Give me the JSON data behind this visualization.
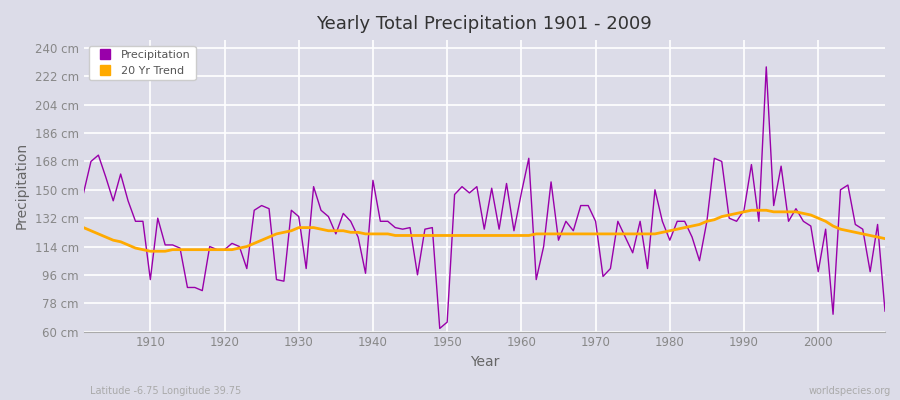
{
  "title": "Yearly Total Precipitation 1901 - 2009",
  "xlabel": "Year",
  "ylabel": "Precipitation",
  "subtitle": "Latitude -6.75 Longitude 39.75",
  "watermark": "worldspecies.org",
  "bg_color": "#dcdce8",
  "plot_bg_color": "#dcdce8",
  "grid_color": "#ffffff",
  "precip_color": "#9900aa",
  "trend_color": "#ffaa00",
  "ylim": [
    60,
    245
  ],
  "yticks": [
    60,
    78,
    96,
    114,
    132,
    150,
    168,
    186,
    204,
    222,
    240
  ],
  "xlim": [
    1901,
    2009
  ],
  "xticks": [
    1910,
    1920,
    1930,
    1940,
    1950,
    1960,
    1970,
    1980,
    1990,
    2000
  ],
  "years": [
    1901,
    1902,
    1903,
    1904,
    1905,
    1906,
    1907,
    1908,
    1909,
    1910,
    1911,
    1912,
    1913,
    1914,
    1915,
    1916,
    1917,
    1918,
    1919,
    1920,
    1921,
    1922,
    1923,
    1924,
    1925,
    1926,
    1927,
    1928,
    1929,
    1930,
    1931,
    1932,
    1933,
    1934,
    1935,
    1936,
    1937,
    1938,
    1939,
    1940,
    1941,
    1942,
    1943,
    1944,
    1945,
    1946,
    1947,
    1948,
    1949,
    1950,
    1951,
    1952,
    1953,
    1954,
    1955,
    1956,
    1957,
    1958,
    1959,
    1960,
    1961,
    1962,
    1963,
    1964,
    1965,
    1966,
    1967,
    1968,
    1969,
    1970,
    1971,
    1972,
    1973,
    1974,
    1975,
    1976,
    1977,
    1978,
    1979,
    1980,
    1981,
    1982,
    1983,
    1984,
    1985,
    1986,
    1987,
    1988,
    1989,
    1990,
    1991,
    1992,
    1993,
    1994,
    1995,
    1996,
    1997,
    1998,
    1999,
    2000,
    2001,
    2002,
    2003,
    2004,
    2005,
    2006,
    2007,
    2008,
    2009
  ],
  "precip": [
    148,
    168,
    172,
    158,
    143,
    160,
    143,
    130,
    130,
    93,
    132,
    115,
    115,
    113,
    88,
    88,
    86,
    114,
    112,
    112,
    116,
    114,
    100,
    137,
    140,
    138,
    93,
    92,
    137,
    133,
    100,
    152,
    137,
    133,
    122,
    135,
    130,
    120,
    97,
    156,
    130,
    130,
    126,
    125,
    126,
    96,
    125,
    126,
    62,
    66,
    147,
    152,
    148,
    152,
    125,
    151,
    125,
    154,
    124,
    148,
    170,
    93,
    114,
    155,
    118,
    130,
    124,
    140,
    140,
    130,
    95,
    100,
    130,
    120,
    110,
    130,
    100,
    150,
    130,
    118,
    130,
    130,
    120,
    105,
    130,
    170,
    168,
    132,
    130,
    137,
    166,
    130,
    228,
    140,
    165,
    130,
    138,
    130,
    127,
    98,
    125,
    71,
    150,
    153,
    128,
    125,
    98,
    128,
    73
  ],
  "trend": [
    126,
    124,
    122,
    120,
    118,
    117,
    115,
    113,
    112,
    111,
    111,
    111,
    112,
    112,
    112,
    112,
    112,
    112,
    112,
    112,
    112,
    113,
    114,
    116,
    118,
    120,
    122,
    123,
    124,
    126,
    126,
    126,
    125,
    124,
    124,
    124,
    123,
    123,
    122,
    122,
    122,
    122,
    121,
    121,
    121,
    121,
    121,
    121,
    121,
    121,
    121,
    121,
    121,
    121,
    121,
    121,
    121,
    121,
    121,
    121,
    121,
    122,
    122,
    122,
    122,
    122,
    122,
    122,
    122,
    122,
    122,
    122,
    122,
    122,
    122,
    122,
    122,
    122,
    123,
    124,
    125,
    126,
    127,
    128,
    130,
    131,
    133,
    134,
    135,
    136,
    137,
    137,
    137,
    136,
    136,
    136,
    136,
    135,
    134,
    132,
    130,
    127,
    125,
    124,
    123,
    122,
    121,
    120,
    119
  ]
}
